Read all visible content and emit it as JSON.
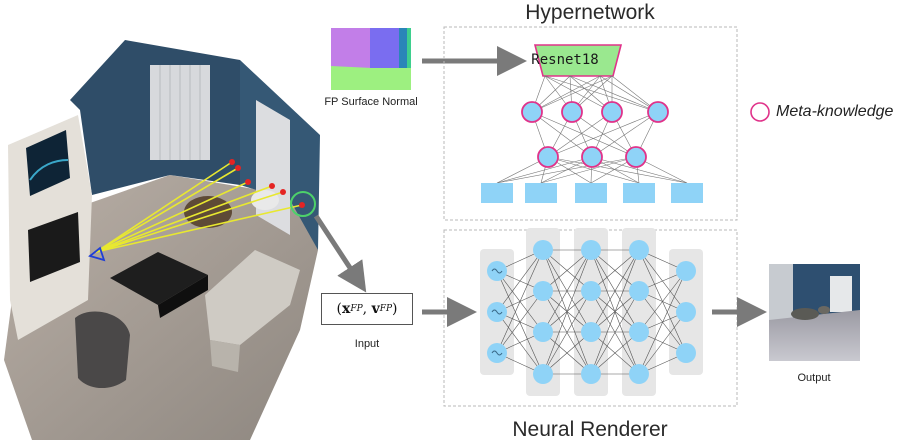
{
  "titles": {
    "hypernetwork": "Hypernetwork",
    "neural_renderer": "Neural Renderer"
  },
  "captions": {
    "surface_normal": "FP Surface Normal",
    "input": "Input",
    "output": "Output"
  },
  "input_formula": {
    "x": "x",
    "v": "v",
    "superscript": "FP"
  },
  "resnet_label": "Resnet18",
  "legend": {
    "meta_knowledge": "Meta-knowledge"
  },
  "colors": {
    "node_fill": "#8fd3f7",
    "meta_node_border": "#e0338a",
    "resnet_fill": "#9ae88f",
    "arrow": "#7a7a7a",
    "dashed_box": "#b8b8b8",
    "column_bg": "#e6e6e6",
    "highlight_circle": "#4dd16a",
    "ray_line": "#e8e830",
    "ray_point": "#e42424",
    "camera": "#1f3fd6"
  },
  "network": {
    "meta_layers": [
      4,
      3
    ],
    "embedding_nodes": 5,
    "renderer_layers": [
      3,
      4,
      4,
      4,
      3
    ]
  }
}
